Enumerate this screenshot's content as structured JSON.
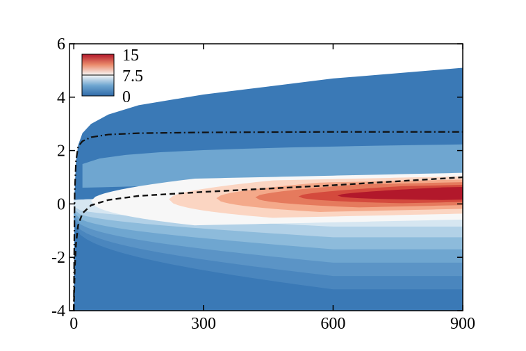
{
  "chart_data": {
    "type": "contour",
    "title": "",
    "xlabel": "",
    "ylabel": "",
    "xlim": [
      -10,
      900
    ],
    "ylim": [
      -4,
      6
    ],
    "x_ticks": [
      0,
      300,
      600,
      900
    ],
    "x_tick_labels": [
      "0",
      "300",
      "600",
      "900"
    ],
    "y_ticks": [
      -4,
      -2,
      0,
      2,
      4,
      6
    ],
    "y_tick_labels": [
      "-4",
      "-2",
      "0",
      "2",
      "4",
      "6"
    ],
    "colorbar": {
      "min": 0,
      "max": 15,
      "labels": [
        {
          "value": 15,
          "text": "15"
        },
        {
          "value": 7.5,
          "text": "7.5"
        },
        {
          "value": 0,
          "text": "0"
        }
      ],
      "placement": "top-left"
    },
    "colors": {
      "background_field": "#3a79b6",
      "low": "#2f6aa8",
      "mid": "#f7f7f7",
      "high": "#b2182b"
    },
    "domain_boundary": {
      "description": "upper edge of filled region",
      "x": [
        0,
        2,
        5,
        10,
        20,
        40,
        80,
        150,
        300,
        600,
        900
      ],
      "y": [
        -4,
        0.5,
        1.6,
        2.2,
        2.65,
        3.0,
        3.35,
        3.7,
        4.1,
        4.7,
        5.1
      ]
    },
    "dashdot_line": {
      "x": [
        0,
        2,
        5,
        10,
        20,
        40,
        80,
        150,
        300,
        600,
        900
      ],
      "y": [
        -4,
        0.4,
        1.6,
        2.15,
        2.35,
        2.5,
        2.6,
        2.65,
        2.68,
        2.7,
        2.7
      ]
    },
    "dashed_line": {
      "x": [
        0,
        2,
        5,
        10,
        20,
        40,
        80,
        150,
        300,
        600,
        900
      ],
      "y": [
        -4,
        -2.5,
        -1.5,
        -0.8,
        -0.35,
        -0.05,
        0.15,
        0.3,
        0.45,
        0.7,
        1.0
      ]
    },
    "peak_region": {
      "x_center": 780,
      "y_center": 0.25,
      "value": 15
    }
  }
}
